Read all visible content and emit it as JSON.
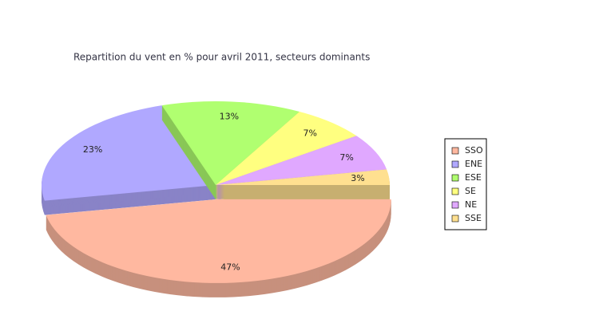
{
  "chart_data": {
    "type": "pie",
    "title": "Repartition du vent en % pour avril 2011, secteurs dominants",
    "categories": [
      "SSO",
      "ENE",
      "ESE",
      "SE",
      "NE",
      "SSE"
    ],
    "values": [
      47,
      23,
      13,
      7,
      7,
      3
    ],
    "value_labels": [
      "47%",
      "23%",
      "13%",
      "7%",
      "7%",
      "3%"
    ],
    "colors": [
      "#ffb8a0",
      "#b0a8ff",
      "#b0ff70",
      "#ffff80",
      "#e0a8ff",
      "#ffe090"
    ],
    "legend": "right"
  }
}
